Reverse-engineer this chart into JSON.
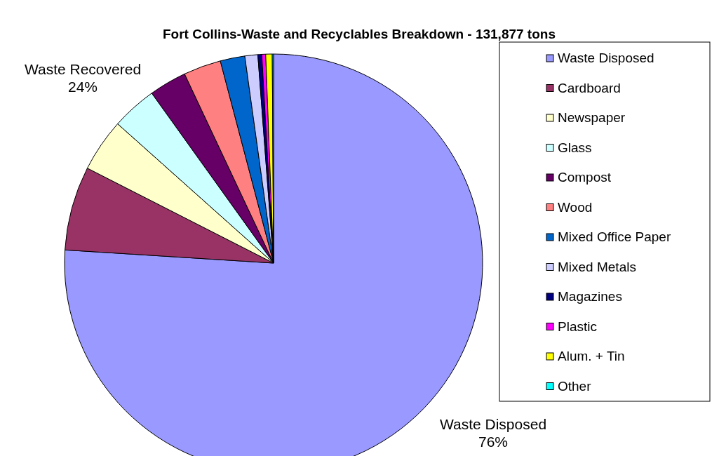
{
  "chart_data": {
    "type": "pie",
    "title": "Fort Collins-Waste and Recyclables Breakdown - 131,877 tons",
    "categories": [
      "Waste Disposed",
      "Cardboard",
      "Newspaper",
      "Glass",
      "Compost",
      "Wood",
      "Mixed Office Paper",
      "Mixed Metals",
      "Magazines",
      "Plastic",
      "Alum. + Tin",
      "Other"
    ],
    "values": [
      76,
      6.5,
      4.1,
      3.5,
      2.9,
      2.9,
      1.9,
      1.0,
      0.3,
      0.3,
      0.5,
      0.1
    ],
    "colors": [
      "#9999ff",
      "#993366",
      "#ffffcc",
      "#ccffff",
      "#660066",
      "#ff8080",
      "#0066cc",
      "#ccccff",
      "#000080",
      "#ff00ff",
      "#ffff00",
      "#00ffff"
    ],
    "legend": "right",
    "annotations": [
      "Waste Disposed\n76%",
      "Waste Recovered\n24%"
    ]
  }
}
